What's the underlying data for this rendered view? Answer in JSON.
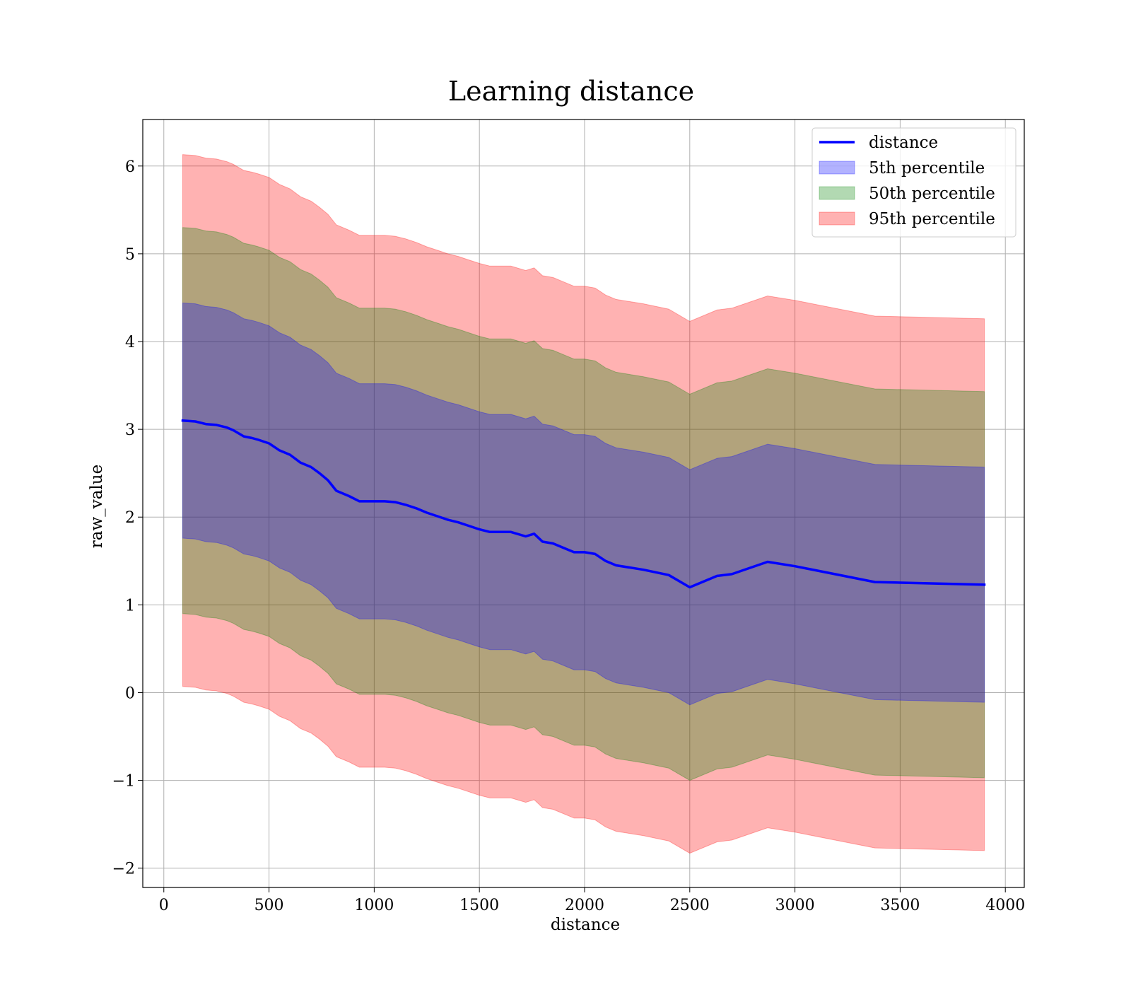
{
  "chart_data": {
    "type": "area",
    "title": "Learning distance",
    "xlabel": "distance",
    "ylabel": "raw_value",
    "xlim": [
      -100,
      4090
    ],
    "ylim": [
      -2.22,
      6.53
    ],
    "xticks": [
      0,
      500,
      1000,
      1500,
      2000,
      2500,
      3000,
      3500,
      4000
    ],
    "xtick_labels": [
      "0",
      "500",
      "1000",
      "1500",
      "2000",
      "2500",
      "3000",
      "3500",
      "4000"
    ],
    "yticks": [
      -2,
      -1,
      0,
      1,
      2,
      3,
      4,
      5,
      6
    ],
    "ytick_labels": [
      "−2",
      "−1",
      "0",
      "1",
      "2",
      "3",
      "4",
      "5",
      "6"
    ],
    "grid": true,
    "legend_position": "top-right",
    "x": [
      90,
      150,
      200,
      250,
      300,
      330,
      380,
      420,
      450,
      500,
      550,
      600,
      650,
      700,
      740,
      780,
      820,
      880,
      930,
      1000,
      1050,
      1100,
      1150,
      1200,
      1250,
      1300,
      1350,
      1400,
      1450,
      1500,
      1550,
      1650,
      1720,
      1760,
      1800,
      1850,
      1900,
      1950,
      2000,
      2050,
      2100,
      2150,
      2280,
      2400,
      2500,
      2630,
      2700,
      2870,
      3000,
      3380,
      3900
    ],
    "series": [
      {
        "name": "distance",
        "kind": "line",
        "color": "#0000ff",
        "values": [
          3.1,
          3.09,
          3.06,
          3.05,
          3.02,
          2.99,
          2.92,
          2.9,
          2.88,
          2.84,
          2.76,
          2.71,
          2.62,
          2.57,
          2.5,
          2.42,
          2.3,
          2.24,
          2.18,
          2.18,
          2.18,
          2.17,
          2.14,
          2.1,
          2.05,
          2.01,
          1.97,
          1.94,
          1.9,
          1.86,
          1.83,
          1.83,
          1.78,
          1.81,
          1.72,
          1.7,
          1.65,
          1.6,
          1.6,
          1.58,
          1.5,
          1.45,
          1.4,
          1.34,
          1.2,
          1.33,
          1.35,
          1.49,
          1.44,
          1.26,
          1.23
        ]
      },
      {
        "name": "5th percentile",
        "kind": "band",
        "color": "#0000ff",
        "lower": [
          1.76,
          1.75,
          1.72,
          1.71,
          1.68,
          1.65,
          1.58,
          1.56,
          1.54,
          1.5,
          1.42,
          1.37,
          1.28,
          1.23,
          1.16,
          1.08,
          0.96,
          0.9,
          0.84,
          0.84,
          0.84,
          0.83,
          0.8,
          0.76,
          0.71,
          0.67,
          0.63,
          0.6,
          0.56,
          0.52,
          0.49,
          0.49,
          0.44,
          0.47,
          0.38,
          0.36,
          0.31,
          0.26,
          0.26,
          0.24,
          0.16,
          0.11,
          0.06,
          0.0,
          -0.14,
          -0.01,
          0.01,
          0.15,
          0.1,
          -0.08,
          -0.11
        ],
        "upper": [
          4.44,
          4.43,
          4.4,
          4.39,
          4.36,
          4.33,
          4.26,
          4.24,
          4.22,
          4.18,
          4.1,
          4.05,
          3.96,
          3.91,
          3.84,
          3.76,
          3.64,
          3.58,
          3.52,
          3.52,
          3.52,
          3.51,
          3.48,
          3.44,
          3.39,
          3.35,
          3.31,
          3.28,
          3.24,
          3.2,
          3.17,
          3.17,
          3.12,
          3.15,
          3.06,
          3.04,
          2.99,
          2.94,
          2.94,
          2.92,
          2.84,
          2.79,
          2.74,
          2.68,
          2.54,
          2.67,
          2.69,
          2.83,
          2.78,
          2.6,
          2.57
        ]
      },
      {
        "name": "50th percentile",
        "kind": "band",
        "color": "#008000",
        "lower": [
          0.9,
          0.89,
          0.86,
          0.85,
          0.82,
          0.79,
          0.72,
          0.7,
          0.68,
          0.64,
          0.56,
          0.51,
          0.42,
          0.37,
          0.3,
          0.22,
          0.1,
          0.04,
          -0.02,
          -0.02,
          -0.02,
          -0.03,
          -0.06,
          -0.1,
          -0.15,
          -0.19,
          -0.23,
          -0.26,
          -0.3,
          -0.34,
          -0.37,
          -0.37,
          -0.42,
          -0.39,
          -0.48,
          -0.5,
          -0.55,
          -0.6,
          -0.6,
          -0.62,
          -0.7,
          -0.75,
          -0.8,
          -0.86,
          -1.0,
          -0.87,
          -0.85,
          -0.71,
          -0.76,
          -0.94,
          -0.97
        ],
        "upper": [
          5.3,
          5.29,
          5.26,
          5.25,
          5.22,
          5.19,
          5.12,
          5.1,
          5.08,
          5.04,
          4.96,
          4.91,
          4.82,
          4.77,
          4.7,
          4.62,
          4.5,
          4.44,
          4.38,
          4.38,
          4.38,
          4.37,
          4.34,
          4.3,
          4.25,
          4.21,
          4.17,
          4.14,
          4.1,
          4.06,
          4.03,
          4.03,
          3.98,
          4.01,
          3.92,
          3.9,
          3.85,
          3.8,
          3.8,
          3.78,
          3.7,
          3.65,
          3.6,
          3.54,
          3.4,
          3.53,
          3.55,
          3.69,
          3.64,
          3.46,
          3.43
        ]
      },
      {
        "name": "95th percentile",
        "kind": "band",
        "color": "#ff0000",
        "lower": [
          0.07,
          0.06,
          0.03,
          0.02,
          -0.01,
          -0.04,
          -0.11,
          -0.13,
          -0.15,
          -0.19,
          -0.27,
          -0.32,
          -0.41,
          -0.46,
          -0.53,
          -0.61,
          -0.73,
          -0.79,
          -0.85,
          -0.85,
          -0.85,
          -0.86,
          -0.89,
          -0.93,
          -0.98,
          -1.02,
          -1.06,
          -1.09,
          -1.13,
          -1.17,
          -1.2,
          -1.2,
          -1.25,
          -1.22,
          -1.31,
          -1.33,
          -1.38,
          -1.43,
          -1.43,
          -1.45,
          -1.53,
          -1.58,
          -1.63,
          -1.69,
          -1.83,
          -1.7,
          -1.68,
          -1.54,
          -1.59,
          -1.77,
          -1.8
        ],
        "upper": [
          6.13,
          6.12,
          6.09,
          6.08,
          6.05,
          6.02,
          5.95,
          5.93,
          5.91,
          5.87,
          5.79,
          5.74,
          5.65,
          5.6,
          5.53,
          5.45,
          5.33,
          5.27,
          5.21,
          5.21,
          5.21,
          5.2,
          5.17,
          5.13,
          5.08,
          5.04,
          5.0,
          4.97,
          4.93,
          4.89,
          4.86,
          4.86,
          4.81,
          4.84,
          4.75,
          4.73,
          4.68,
          4.63,
          4.63,
          4.61,
          4.53,
          4.48,
          4.43,
          4.37,
          4.23,
          4.36,
          4.38,
          4.52,
          4.47,
          4.29,
          4.26
        ]
      }
    ]
  }
}
